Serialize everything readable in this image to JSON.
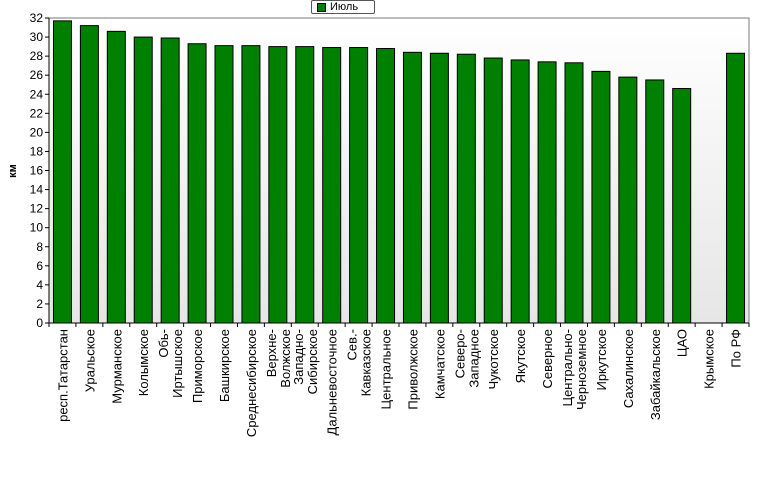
{
  "chart_data": {
    "type": "bar",
    "title": "",
    "xlabel": "",
    "ylabel": "км",
    "ylim": [
      0,
      32
    ],
    "ytick_step": 2,
    "grid": false,
    "legend_placement": "top-center",
    "categories": [
      "респ.Татарстан",
      "Уральское",
      "Мурманское",
      "Колымское",
      "Обь-Иртышское",
      "Приморское",
      "Башкирское",
      "Среднесибирское",
      "Верхне-Волжское",
      "Западно-Сибирское",
      "Дальневосточное",
      "Сев.-Кавказское",
      "Центральное",
      "Приволжское",
      "Камчатское",
      "Северо-Западное",
      "Чукотское",
      "Якутское",
      "Северное",
      "Центрально-Черноземное",
      "Иркутское",
      "Сахалинское",
      "Забайкальское",
      "ЦАО",
      "Крымское",
      "По РФ"
    ],
    "category_lines": [
      [
        "респ.Татарстан"
      ],
      [
        "Уральское"
      ],
      [
        "Мурманское"
      ],
      [
        "Колымское"
      ],
      [
        "Обь-",
        "Иртышское"
      ],
      [
        "Приморское"
      ],
      [
        "Башкирское"
      ],
      [
        "Среднесибирское"
      ],
      [
        "Верхне-",
        "Волжское"
      ],
      [
        "Западно-",
        "Сибирское"
      ],
      [
        "Дальневосточное"
      ],
      [
        "Сев.-",
        "Кавказское"
      ],
      [
        "Центральное"
      ],
      [
        "Приволжское"
      ],
      [
        "Камчатское"
      ],
      [
        "Северо-",
        "Западное"
      ],
      [
        "Чукотское"
      ],
      [
        "Якутское"
      ],
      [
        "Северное"
      ],
      [
        "Центрально-",
        "Черноземное"
      ],
      [
        "Иркутское"
      ],
      [
        "Сахалинское"
      ],
      [
        "Забайкальское"
      ],
      [
        "ЦАО"
      ],
      [
        "Крымское"
      ],
      [
        "По РФ"
      ]
    ],
    "series": [
      {
        "name": "Июль",
        "color": "#008000",
        "values": [
          31.7,
          31.2,
          30.6,
          30.0,
          29.9,
          29.3,
          29.1,
          29.1,
          29.0,
          29.0,
          28.9,
          28.9,
          28.8,
          28.4,
          28.3,
          28.2,
          27.8,
          27.6,
          27.4,
          27.3,
          26.4,
          25.8,
          25.5,
          24.6,
          null,
          28.3
        ]
      }
    ]
  },
  "colors": {
    "bar_fill": "#008000",
    "bar_stroke": "#000000",
    "plot_bg_top": "#ffffff",
    "plot_bg_bottom": "#e6e6e6"
  }
}
